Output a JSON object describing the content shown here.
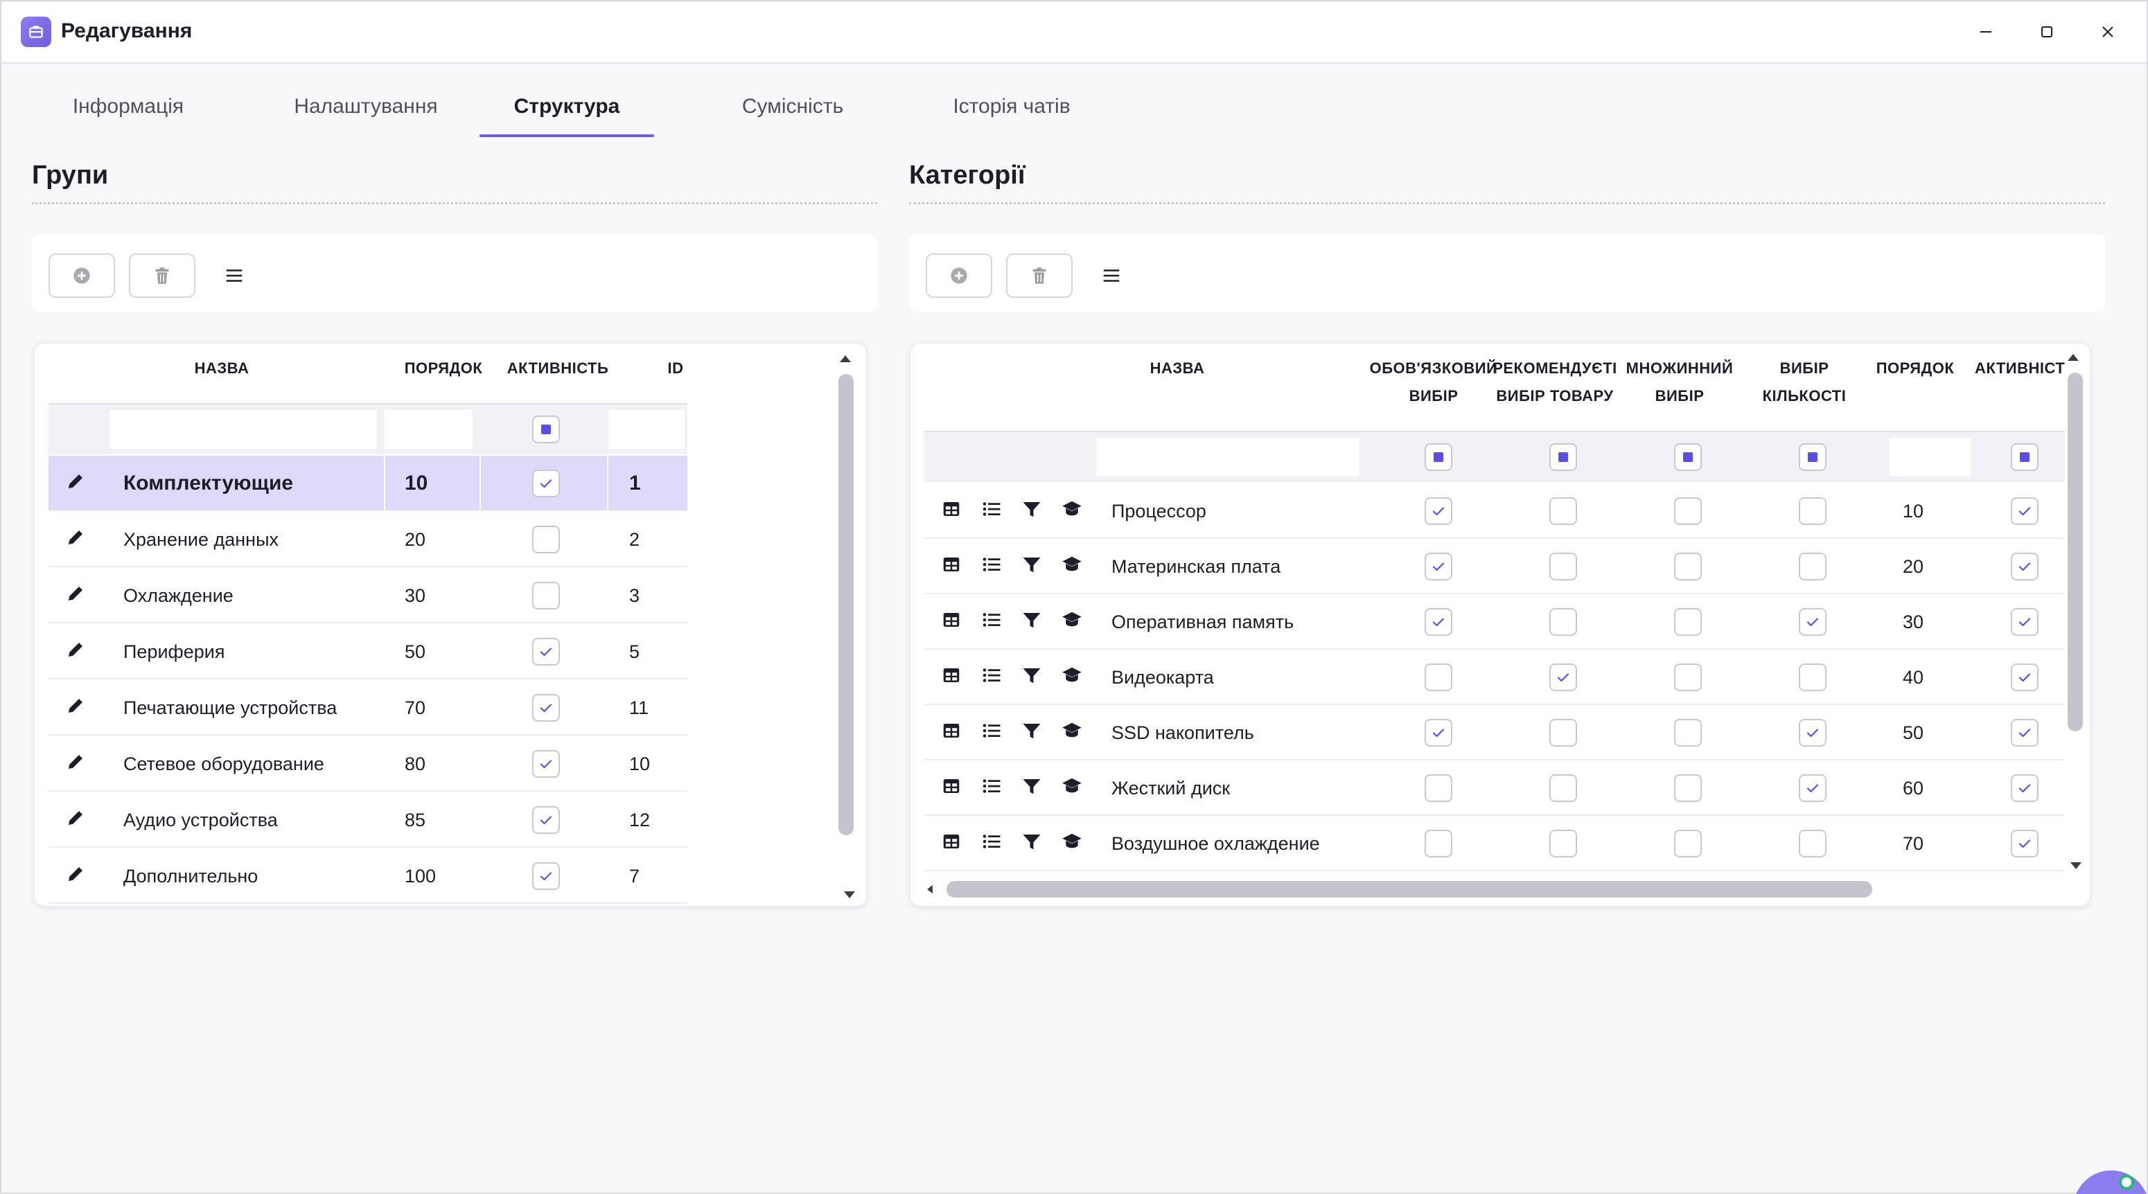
{
  "window": {
    "title": "Редагування"
  },
  "tabs": [
    {
      "label": "Інформація",
      "active": false
    },
    {
      "label": "Налаштування",
      "active": false
    },
    {
      "label": "Структура",
      "active": true
    },
    {
      "label": "Сумісність",
      "active": false
    },
    {
      "label": "Історія чатів",
      "active": false
    }
  ],
  "groups": {
    "title": "Групи",
    "toolbar": {
      "add_icon": "plus-circle-icon",
      "delete_icon": "trash-icon",
      "menu_icon": "hamburger-icon"
    },
    "columns": [
      "НАЗВА",
      "ПОРЯДОК",
      "АКТИВНІСТЬ",
      "ID"
    ],
    "rows": [
      {
        "name": "Комплектующие",
        "order": "10",
        "active": true,
        "id": "1",
        "selected": true
      },
      {
        "name": "Хранение данных",
        "order": "20",
        "active": false,
        "id": "2"
      },
      {
        "name": "Охлаждение",
        "order": "30",
        "active": false,
        "id": "3"
      },
      {
        "name": "Периферия",
        "order": "50",
        "active": true,
        "id": "5"
      },
      {
        "name": "Печатающие устройства",
        "order": "70",
        "active": true,
        "id": "11"
      },
      {
        "name": "Сетевое оборудование",
        "order": "80",
        "active": true,
        "id": "10"
      },
      {
        "name": "Аудио устройства",
        "order": "85",
        "active": true,
        "id": "12"
      },
      {
        "name": "Дополнительно",
        "order": "100",
        "active": true,
        "id": "7"
      }
    ]
  },
  "categories": {
    "title": "Категорії",
    "toolbar": {
      "add_icon": "plus-circle-icon",
      "delete_icon": "trash-icon",
      "menu_icon": "hamburger-icon"
    },
    "columns": {
      "name": "НАЗВА",
      "required_1": "ОБОВ'ЯЗКОВИЙ",
      "required_2": "ВИБІР",
      "recommended_1": "РЕКОМЕНДУЄТІ",
      "recommended_2": "ВИБІР ТОВАРУ",
      "multiple_1": "МНОЖИННИЙ",
      "multiple_2": "ВИБІР",
      "quantity_1": "ВИБІР",
      "quantity_2": "КІЛЬКОСТІ",
      "order": "ПОРЯДОК",
      "active": "АКТИВНІСТ"
    },
    "row_icons": [
      "table-icon",
      "list-icon",
      "filter-icon",
      "graduation-cap-icon"
    ],
    "rows": [
      {
        "name": "Процессор",
        "required": true,
        "recommended": false,
        "multiple": false,
        "quantity": false,
        "order": "10",
        "active": true
      },
      {
        "name": "Материнская плата",
        "required": true,
        "recommended": false,
        "multiple": false,
        "quantity": false,
        "order": "20",
        "active": true
      },
      {
        "name": "Оперативная память",
        "required": true,
        "recommended": false,
        "multiple": false,
        "quantity": true,
        "order": "30",
        "active": true
      },
      {
        "name": "Видеокарта",
        "required": false,
        "recommended": true,
        "multiple": false,
        "quantity": false,
        "order": "40",
        "active": true
      },
      {
        "name": "SSD накопитель",
        "required": true,
        "recommended": false,
        "multiple": false,
        "quantity": true,
        "order": "50",
        "active": true
      },
      {
        "name": "Жесткий диск",
        "required": false,
        "recommended": false,
        "multiple": false,
        "quantity": true,
        "order": "60",
        "active": true
      },
      {
        "name": "Воздушное охлаждение",
        "required": false,
        "recommended": false,
        "multiple": false,
        "quantity": false,
        "order": "70",
        "active": true
      }
    ]
  },
  "colors": {
    "accent": "#6f5ee0",
    "selected_row": "#dcdaf8",
    "checkbox_indicator": "#5a4fe0"
  }
}
